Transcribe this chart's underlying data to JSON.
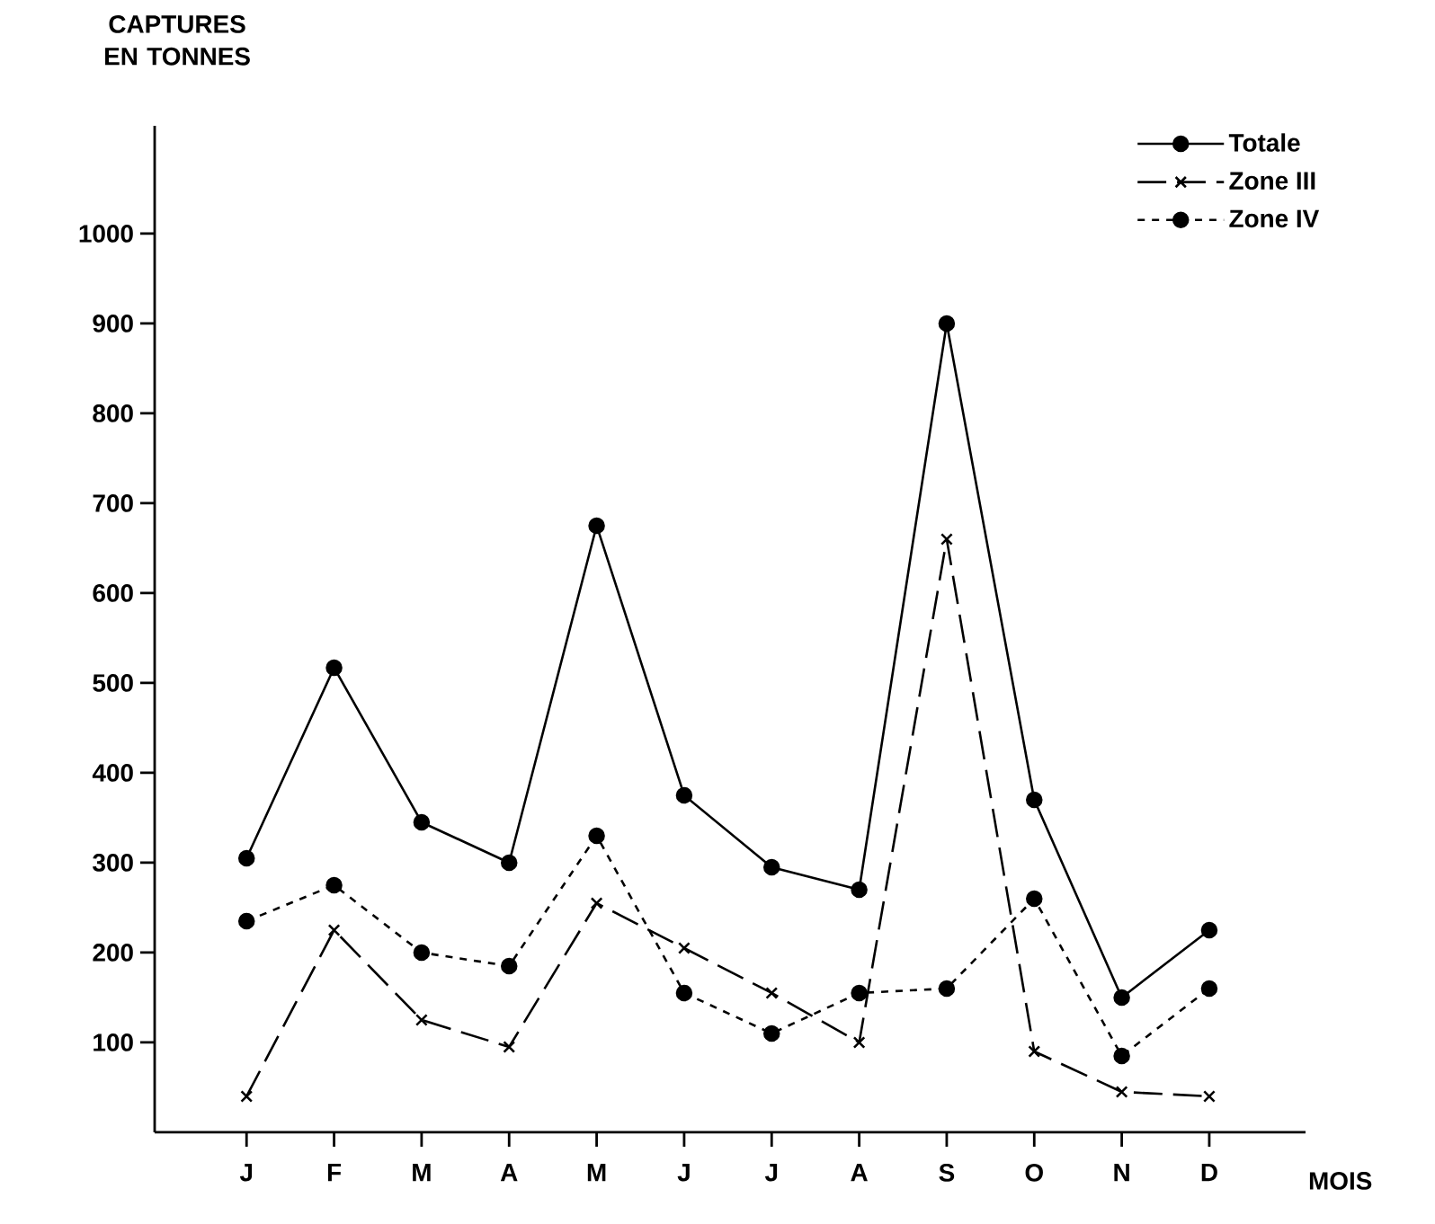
{
  "chart_data": {
    "type": "line",
    "ylabel": "CAPTURES EN TONNES",
    "xlabel": "MOIS",
    "categories": [
      "J",
      "F",
      "M",
      "A",
      "M",
      "J",
      "J",
      "A",
      "S",
      "O",
      "N",
      "D"
    ],
    "series": [
      {
        "name": "Totale",
        "color": "#000000",
        "marker": "circle",
        "line_style": "solid",
        "values": [
          305,
          517,
          345,
          300,
          675,
          375,
          295,
          270,
          900,
          370,
          150,
          225
        ]
      },
      {
        "name": "Zone III",
        "color": "#000000",
        "marker": "cross",
        "line_style": "dashed",
        "values": [
          40,
          225,
          125,
          95,
          255,
          205,
          155,
          100,
          660,
          90,
          45,
          40
        ]
      },
      {
        "name": "Zone IV",
        "color": "#000000",
        "marker": "circle",
        "line_style": "dotted",
        "values": [
          235,
          275,
          200,
          185,
          330,
          155,
          110,
          155,
          160,
          260,
          85,
          160
        ]
      }
    ],
    "ylim": [
      0,
      1120
    ],
    "yticks": [
      100,
      200,
      300,
      400,
      500,
      600,
      700,
      800,
      900,
      1000
    ],
    "grid": false,
    "legend": "top right"
  }
}
